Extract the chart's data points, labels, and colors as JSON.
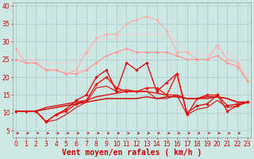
{
  "background_color": "#cce8e4",
  "grid_color": "#aacccc",
  "xlabel": "Vent moyen/en rafales ( km/h )",
  "xlabel_color": "#cc0000",
  "xlabel_fontsize": 7,
  "xticks": [
    0,
    1,
    2,
    3,
    4,
    5,
    6,
    7,
    8,
    9,
    10,
    11,
    12,
    13,
    14,
    15,
    16,
    17,
    18,
    19,
    20,
    21,
    22,
    23
  ],
  "yticks": [
    5,
    10,
    15,
    20,
    25,
    30,
    35,
    40
  ],
  "ylim": [
    3,
    41
  ],
  "xlim": [
    -0.3,
    23.3
  ],
  "series": [
    {
      "x": [
        0,
        1,
        2,
        3,
        4,
        5,
        6,
        7,
        8,
        9,
        10,
        11,
        12,
        13,
        14,
        15,
        16,
        17,
        18,
        19,
        20,
        21,
        22,
        23
      ],
      "y": [
        28,
        24,
        24,
        22,
        22,
        21,
        22,
        27,
        31,
        32,
        32,
        35,
        36,
        37,
        36,
        33,
        27,
        27,
        25,
        25,
        29,
        25,
        24,
        19
      ],
      "color": "#ffaaaa",
      "lw": 0.8,
      "marker": "D",
      "ms": 1.8,
      "zorder": 2
    },
    {
      "x": [
        0,
        1,
        2,
        3,
        4,
        5,
        6,
        7,
        8,
        9,
        10,
        11,
        12,
        13,
        14,
        15,
        16,
        17,
        18,
        19,
        20,
        21,
        22,
        23
      ],
      "y": [
        27,
        25,
        25,
        24,
        24,
        24,
        25,
        27,
        30,
        31,
        31,
        32,
        32,
        32,
        32,
        32,
        30,
        27,
        27,
        26,
        28,
        27,
        25,
        20
      ],
      "color": "#ffcccc",
      "lw": 0.8,
      "marker": null,
      "ms": 0,
      "zorder": 1
    },
    {
      "x": [
        0,
        1,
        2,
        3,
        4,
        5,
        6,
        7,
        8,
        9,
        10,
        11,
        12,
        13,
        14,
        15,
        16,
        17,
        18,
        19,
        20,
        21,
        22,
        23
      ],
      "y": [
        25,
        24,
        24,
        22,
        22,
        21,
        21,
        22,
        24,
        26,
        27,
        28,
        27,
        27,
        27,
        27,
        26,
        25,
        25,
        25,
        26,
        24,
        23,
        19
      ],
      "color": "#ffaaaa",
      "lw": 0.8,
      "marker": null,
      "ms": 0,
      "zorder": 1
    },
    {
      "x": [
        0,
        1,
        2,
        3,
        4,
        5,
        6,
        7,
        8,
        9,
        10,
        11,
        12,
        13,
        14,
        15,
        16,
        17,
        18,
        19,
        20,
        21,
        22,
        23
      ],
      "y": [
        25,
        24,
        24,
        22,
        22,
        21,
        21,
        22,
        24,
        26,
        27,
        28,
        27,
        27,
        27,
        27,
        26,
        25,
        25,
        25,
        26,
        24,
        23,
        19
      ],
      "color": "#ff9999",
      "lw": 0.8,
      "marker": "D",
      "ms": 1.8,
      "zorder": 2
    },
    {
      "x": [
        0,
        1,
        2,
        3,
        4,
        5,
        6,
        7,
        8,
        9,
        10,
        11,
        12,
        13,
        14,
        15,
        16,
        17,
        18,
        19,
        20,
        21,
        22,
        23
      ],
      "y": [
        10.5,
        10.5,
        10.5,
        11,
        11.5,
        12,
        12.5,
        13,
        13.5,
        14,
        14,
        14,
        14,
        14.5,
        14,
        14.5,
        14.5,
        14,
        14,
        14.5,
        14.5,
        14,
        13,
        13
      ],
      "color": "#cc0000",
      "lw": 1.0,
      "marker": null,
      "ms": 0,
      "zorder": 5
    },
    {
      "x": [
        0,
        1,
        2,
        3,
        4,
        5,
        6,
        7,
        8,
        9,
        10,
        11,
        12,
        13,
        14,
        15,
        16,
        17,
        18,
        19,
        20,
        21,
        22,
        23
      ],
      "y": [
        10.5,
        10.5,
        10.5,
        11.5,
        12,
        12.5,
        13,
        13.5,
        14.5,
        15,
        15.5,
        16,
        16,
        16,
        15.5,
        15,
        15,
        14,
        14,
        14,
        14.5,
        14,
        13,
        13
      ],
      "color": "#dd1111",
      "lw": 1.0,
      "marker": null,
      "ms": 0,
      "zorder": 5
    },
    {
      "x": [
        0,
        1,
        2,
        3,
        4,
        5,
        6,
        7,
        8,
        9,
        10,
        11,
        12,
        13,
        14,
        15,
        16,
        17,
        18,
        19,
        20,
        21,
        22,
        23
      ],
      "y": [
        10.5,
        10.5,
        10.5,
        7.5,
        9.5,
        11,
        13.5,
        15,
        20,
        22,
        16,
        24,
        22,
        24,
        16,
        18.5,
        21,
        10,
        12,
        12.5,
        15,
        12,
        12.5,
        13
      ],
      "color": "#dd0000",
      "lw": 0.9,
      "marker": "D",
      "ms": 1.8,
      "zorder": 4
    },
    {
      "x": [
        0,
        1,
        2,
        3,
        4,
        5,
        6,
        7,
        8,
        9,
        10,
        11,
        12,
        13,
        14,
        15,
        16,
        17,
        18,
        19,
        20,
        21,
        22,
        23
      ],
      "y": [
        10.5,
        10.5,
        10.5,
        7.5,
        9.5,
        10.5,
        12.5,
        13.5,
        18,
        20,
        17,
        16,
        16,
        17,
        17,
        15,
        21,
        9.5,
        14,
        15,
        15,
        10.5,
        12,
        13
      ],
      "color": "#ff0000",
      "lw": 0.9,
      "marker": "D",
      "ms": 1.8,
      "zorder": 4
    },
    {
      "x": [
        0,
        1,
        2,
        3,
        4,
        5,
        6,
        7,
        8,
        9,
        10,
        11,
        12,
        13,
        14,
        15,
        16,
        17,
        18,
        19,
        20,
        21,
        22,
        23
      ],
      "y": [
        10.5,
        10.5,
        10.5,
        7.5,
        8,
        9.5,
        11.5,
        13,
        17,
        17.5,
        16,
        16.5,
        16,
        16,
        14,
        14,
        15,
        9.5,
        11,
        11.5,
        13.5,
        11.5,
        12,
        13
      ],
      "color": "#cc1111",
      "lw": 0.8,
      "marker": null,
      "ms": 0,
      "zorder": 3
    }
  ],
  "arrow_color": "#cc0000",
  "tick_fontsize": 5.5,
  "tick_color": "#cc0000",
  "ylabel_values": [
    "5",
    "10",
    "15",
    "20",
    "25",
    "30",
    "35",
    "40"
  ]
}
